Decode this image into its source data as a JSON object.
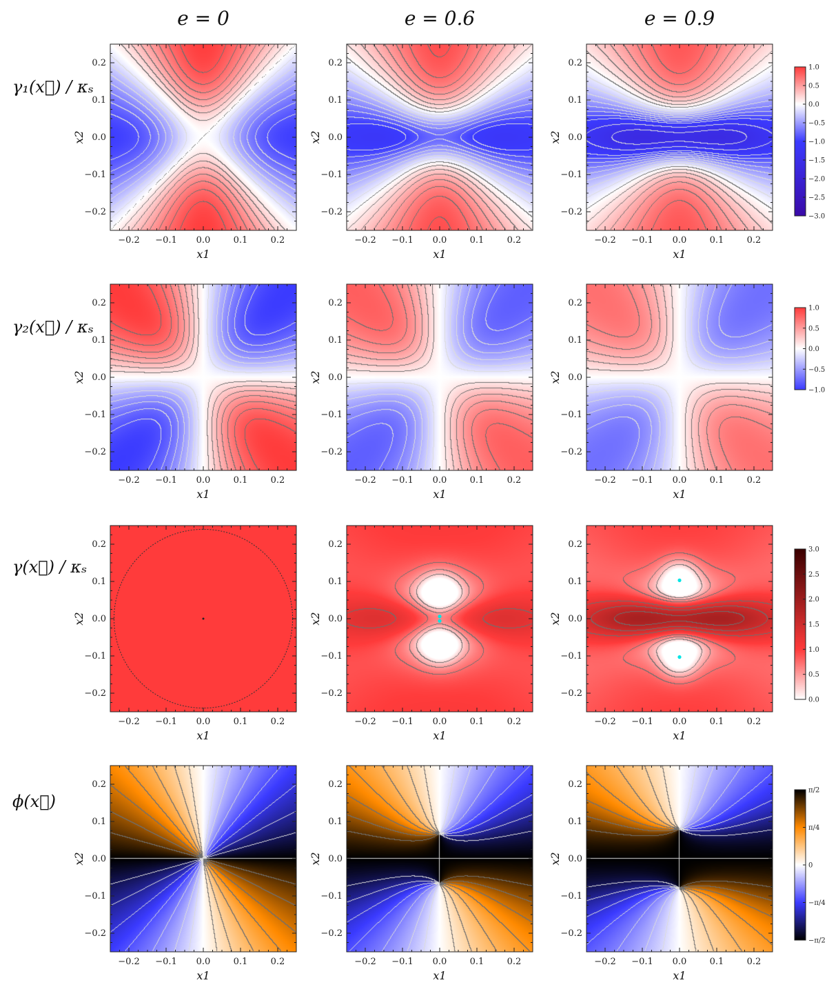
{
  "column_titles": [
    "e = 0",
    "e = 0.6",
    "e = 0.9"
  ],
  "row_labels": [
    "γ₁(x⃗) / κₛ",
    "γ₂(x⃗) / κₛ",
    "γ(x⃗) / κₛ",
    "ϕ(x⃗)"
  ],
  "colors": {
    "red": "#ff3b3b",
    "blue": "#3b3bff",
    "dark_blue": "#3a0aa8",
    "dark_red": "#3a0000",
    "orange": "#ff8a00",
    "black": "#000000",
    "contour_dark": "#6f6f6f",
    "contour_light": "#dcdcdc",
    "marker": "#00e5e5"
  },
  "chart_data": [
    {
      "type": "heatmap",
      "panels": [
        {
          "row": 0,
          "col": 0,
          "e": 0,
          "quantity": "gamma1"
        },
        {
          "row": 0,
          "col": 1,
          "e": 0.6,
          "quantity": "gamma1"
        },
        {
          "row": 0,
          "col": 2,
          "e": 0.9,
          "quantity": "gamma1"
        },
        {
          "row": 1,
          "col": 0,
          "e": 0,
          "quantity": "gamma2"
        },
        {
          "row": 1,
          "col": 1,
          "e": 0.6,
          "quantity": "gamma2"
        },
        {
          "row": 1,
          "col": 2,
          "e": 0.9,
          "quantity": "gamma2"
        },
        {
          "row": 2,
          "col": 0,
          "e": 0,
          "quantity": "gamma"
        },
        {
          "row": 2,
          "col": 1,
          "e": 0.6,
          "quantity": "gamma"
        },
        {
          "row": 2,
          "col": 2,
          "e": 0.9,
          "quantity": "gamma"
        },
        {
          "row": 3,
          "col": 0,
          "e": 0,
          "quantity": "phi"
        },
        {
          "row": 3,
          "col": 1,
          "e": 0.6,
          "quantity": "phi"
        },
        {
          "row": 3,
          "col": 2,
          "e": 0.9,
          "quantity": "phi"
        }
      ],
      "x": {
        "label": "x1",
        "range": [
          -0.25,
          0.25
        ],
        "ticks": [
          -0.2,
          -0.1,
          0.0,
          0.1,
          0.2
        ],
        "tick_labels": [
          "−0.2",
          "−0.1",
          "0.0",
          "0.1",
          "0.2"
        ]
      },
      "y": {
        "label": "x2",
        "range": [
          -0.25,
          0.25
        ],
        "ticks": [
          -0.2,
          -0.1,
          0.0,
          0.1,
          0.2
        ],
        "tick_labels": [
          "−0.2",
          "−0.1",
          "0.0",
          "0.1",
          "0.2"
        ]
      },
      "colorbars": [
        {
          "row": 0,
          "range": [
            -3.0,
            1.0
          ],
          "ticks": [
            1.0,
            0.5,
            0.0,
            -0.5,
            -1.0,
            -1.5,
            -2.0,
            -2.5,
            -3.0
          ],
          "tick_labels": [
            "1.0",
            "0.5",
            "0.0",
            "−0.5",
            "−1.0",
            "−1.5",
            "−2.0",
            "−2.5",
            "−3.0"
          ]
        },
        {
          "row": 1,
          "range": [
            -1.0,
            1.0
          ],
          "ticks": [
            1.0,
            0.5,
            0.0,
            -0.5,
            -1.0
          ],
          "tick_labels": [
            "1.0",
            "0.5",
            "0.0",
            "−0.5",
            "−1.0"
          ]
        },
        {
          "row": 2,
          "range": [
            0.0,
            3.0
          ],
          "ticks": [
            3.0,
            2.5,
            2.0,
            1.5,
            1.0,
            0.5,
            0.0
          ],
          "tick_labels": [
            "3.0",
            "2.5",
            "2.0",
            "1.5",
            "1.0",
            "0.5",
            "0.0"
          ]
        },
        {
          "row": 3,
          "range": [
            -1.5708,
            1.5708
          ],
          "ticks": [
            1.5708,
            0.7854,
            0,
            -0.7854,
            -1.5708
          ],
          "tick_labels": [
            "π/2",
            "π/4",
            "0",
            "−π/4",
            "−π/2"
          ]
        }
      ],
      "markers": [
        {
          "row": 2,
          "col": 1,
          "points": [
            [
              0.0,
              0.006
            ],
            [
              0.0,
              -0.006
            ]
          ]
        },
        {
          "row": 2,
          "col": 2,
          "points": [
            [
              0.0,
              0.103
            ],
            [
              0.0,
              -0.103
            ]
          ]
        }
      ]
    }
  ]
}
